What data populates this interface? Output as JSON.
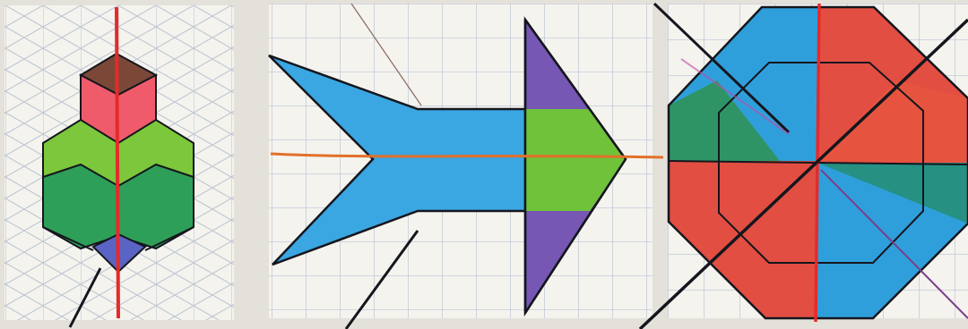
{
  "image": {
    "description_kind": "photo-of-handdrawn-symmetry-worksheet",
    "panels": [
      {
        "name": "vase-panel",
        "grid": "isometric",
        "symmetry_line": "vertical"
      },
      {
        "name": "arrow-panel",
        "grid": "square",
        "symmetry_line": "horizontal"
      },
      {
        "name": "octagon-panel",
        "grid": "square",
        "symmetry_line": "vertical-and-diagonal"
      }
    ]
  },
  "colors": {
    "paper": "#f4f3ee",
    "grid": "#b9c3d3",
    "outline": "#15161d",
    "symmetry_line": "#e42b2b",
    "orange_line": "#e2702a",
    "blue": "#2f9fdb",
    "light_blue": "#46aee6",
    "green": "#2e9f58",
    "light_green": "#7cc73b",
    "purple": "#7657b4",
    "red": "#e24e42",
    "pink": "#ef5b6b",
    "brown": "#7b4838",
    "teal": "#269083"
  },
  "icons": {
    "symmetry_line": "red-line",
    "cross_lines": "black-pen-lines"
  }
}
